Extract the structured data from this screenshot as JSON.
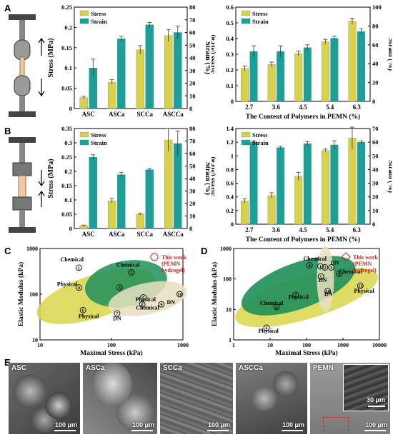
{
  "panels": {
    "A": "A",
    "B": "B",
    "C": "C",
    "D": "D",
    "E": "E"
  },
  "colors": {
    "stress": "#d8d24a",
    "strain": "#1e9e96",
    "ellipse_yellow": "#d9d64a",
    "ellipse_green": "#1f8f5a",
    "ellipse_beige": "#e8dfc0",
    "this_work": "#cc2222"
  },
  "chart_data": [
    {
      "id": "A-left",
      "type": "bar",
      "categories": [
        "ASC",
        "ASCa",
        "SCCa",
        "ASCCa"
      ],
      "series": [
        {
          "name": "Stress",
          "axis": "left",
          "values": [
            0.027,
            0.065,
            0.145,
            0.18
          ],
          "errors": [
            0.003,
            0.006,
            0.01,
            0.015
          ]
        },
        {
          "name": "Strain",
          "axis": "right",
          "values": [
            32,
            55,
            66,
            60
          ],
          "errors": [
            7,
            2,
            2,
            5
          ]
        }
      ],
      "ylabel": "Stress (MPa)",
      "ylim": [
        0,
        0.25
      ],
      "yticks": [
        0,
        0.05,
        0.1,
        0.15,
        0.2,
        0.25
      ],
      "y2label": "Strain (%)",
      "y2lim": [
        0,
        80
      ],
      "y2ticks": [
        0,
        10,
        20,
        30,
        40,
        50,
        60,
        70,
        80
      ],
      "xlabel": "",
      "legend": "top-left"
    },
    {
      "id": "A-right",
      "type": "bar",
      "categories": [
        "2.7",
        "3.6",
        "4.5",
        "5.4",
        "6.3"
      ],
      "series": [
        {
          "name": "Stress",
          "axis": "left",
          "values": [
            0.21,
            0.235,
            0.305,
            0.38,
            0.51
          ],
          "errors": [
            0.015,
            0.015,
            0.015,
            0.015,
            0.02
          ]
        },
        {
          "name": "Strain",
          "axis": "right",
          "values": [
            53,
            53,
            57,
            67,
            74
          ],
          "errors": [
            6,
            6,
            3,
            2,
            3
          ]
        }
      ],
      "ylabel": "Stress (MPa)",
      "ylim": [
        0,
        0.6
      ],
      "yticks": [
        0,
        0.1,
        0.2,
        0.3,
        0.4,
        0.5,
        0.6
      ],
      "y2label": "Strain (%)",
      "y2lim": [
        0,
        100
      ],
      "y2ticks": [
        0,
        20,
        40,
        60,
        80,
        100
      ],
      "xlabel": "The Content of Polymers in PEMN (%)",
      "legend": "top-left"
    },
    {
      "id": "B-left",
      "type": "bar",
      "categories": [
        "ASC",
        "ASCa",
        "SCCa",
        "ASCCa"
      ],
      "series": [
        {
          "name": "Stress",
          "axis": "left",
          "values": [
            0.01,
            0.097,
            0.05,
            0.31
          ],
          "errors": [
            0.002,
            0.008,
            0.003,
            0.04
          ]
        },
        {
          "name": "Strain",
          "axis": "right",
          "values": [
            57,
            43,
            47,
            68
          ],
          "errors": [
            2,
            2,
            1,
            10
          ]
        }
      ],
      "ylabel": "Stress (MPa)",
      "ylim": [
        0,
        0.35
      ],
      "yticks": [
        0,
        0.05,
        0.1,
        0.15,
        0.2,
        0.25,
        0.3,
        0.35
      ],
      "y2label": "Strain (%)",
      "y2lim": [
        0,
        80
      ],
      "y2ticks": [
        0,
        10,
        20,
        30,
        40,
        50,
        60,
        70,
        80
      ],
      "xlabel": "",
      "legend": "top-left"
    },
    {
      "id": "B-right",
      "type": "bar",
      "categories": [
        "2.7",
        "3.6",
        "4.5",
        "5.4",
        "6.3"
      ],
      "series": [
        {
          "name": "Stress",
          "axis": "left",
          "values": [
            0.34,
            0.42,
            0.7,
            1.08,
            1.26
          ],
          "errors": [
            0.03,
            0.04,
            0.06,
            0.02,
            0.16
          ]
        },
        {
          "name": "Strain",
          "axis": "right",
          "values": [
            60,
            56,
            59,
            58,
            60
          ],
          "errors": [
            1,
            1,
            1.5,
            3,
            1
          ]
        }
      ],
      "ylabel": "Stress (MPa)",
      "ylim": [
        0,
        1.4
      ],
      "yticks": [
        0,
        0.2,
        0.4,
        0.6,
        0.8,
        1.0,
        1.2,
        1.4
      ],
      "y2label": "Strain (%)",
      "y2lim": [
        0,
        70
      ],
      "y2ticks": [
        0,
        10,
        20,
        30,
        40,
        50,
        60,
        70
      ],
      "xlabel": "The Content of  Polymers in PEMN (%)",
      "legend": "top-left"
    },
    {
      "id": "C",
      "type": "scatter",
      "xlabel": "Maximal Stress (kPa)",
      "ylabel": "Elastic Modulus (kPa)",
      "xscale": "log",
      "yscale": "log",
      "xlim": [
        10,
        1000
      ],
      "ylim": [
        10,
        1000
      ],
      "xticks": [
        "10",
        "100",
        "1000"
      ],
      "yticks": [
        "10",
        "100",
        "1000"
      ],
      "points": [
        {
          "id": "1",
          "x": 35,
          "y": 380,
          "label": "Chemical"
        },
        {
          "id": "2",
          "x": 190,
          "y": 300,
          "label": "Chemical"
        },
        {
          "id": "3",
          "x": 130,
          "y": 140,
          "label": ""
        },
        {
          "id": "4",
          "x": 35,
          "y": 140,
          "label": "Physical"
        },
        {
          "id": "5",
          "x": 280,
          "y": 85,
          "label": "Physical"
        },
        {
          "id": "6",
          "x": 40,
          "y": 45,
          "label": "Physical"
        },
        {
          "id": "7",
          "x": 120,
          "y": 38,
          "label": "DN"
        },
        {
          "id": "8",
          "x": 270,
          "y": 60,
          "label": "Chemical"
        },
        {
          "id": "9",
          "x": 500,
          "y": 60,
          "label": "DN"
        },
        {
          "id": "10",
          "x": 900,
          "y": 100,
          "label": "DN"
        }
      ],
      "legend": "This work\n(PEMN\nhydrogel)"
    },
    {
      "id": "D",
      "type": "scatter",
      "xlabel": "Maximal Stress (kPa)",
      "ylabel": "Elastic Modulus (kPa)",
      "xscale": "log",
      "yscale": "log",
      "xlim": [
        1,
        10000
      ],
      "ylim": [
        1,
        1000
      ],
      "xticks": [
        "1",
        "10",
        "100",
        "1000",
        "10000"
      ],
      "yticks": [
        "1",
        "10",
        "100",
        "1000"
      ],
      "points": [
        {
          "id": "1",
          "x": 240,
          "y": 260,
          "label": "Chemical"
        },
        {
          "id": "2",
          "x": 320,
          "y": 240,
          "label": ""
        },
        {
          "id": "3",
          "x": 480,
          "y": 240,
          "label": "DN"
        },
        {
          "id": "4",
          "x": 120,
          "y": 280,
          "label": ""
        },
        {
          "id": "5",
          "x": 250,
          "y": 120,
          "label": "DN"
        },
        {
          "id": "6",
          "x": 8,
          "y": 2.5,
          "label": "Physical"
        },
        {
          "id": "7",
          "x": 50,
          "y": 30,
          "label": "Physical"
        },
        {
          "id": "8",
          "x": 15,
          "y": 12,
          "label": "Chemical"
        },
        {
          "id": "9",
          "x": 800,
          "y": 150,
          "label": "Chemical"
        },
        {
          "id": "10",
          "x": 380,
          "y": 40,
          "label": "DN"
        },
        {
          "id": "11",
          "x": 3000,
          "y": 60,
          "label": "Physical"
        }
      ],
      "legend": "This work\n(PEMN\nhydrogel)"
    }
  ],
  "text": {
    "c_labels": {
      "chem1": "Chemical",
      "chem2": "Chemical",
      "phys1": "Physical",
      "phys2": "Physical",
      "phys3": "Physical",
      "dn1": "DN",
      "dn2": "DN",
      "chem3": "Chemical"
    },
    "d_labels": {
      "chem1": "Chemical",
      "chem2": "Chemical",
      "chem3": "Chemical",
      "phys1": "Physical",
      "phys2": "Physical",
      "phys3": "Physical",
      "dn1": "DN",
      "dn2": "DN",
      "dn3": "DN"
    },
    "this_work_c": [
      "This work",
      "(PEMN",
      "hydrogel)"
    ],
    "this_work_d": [
      "This work",
      "(PEMN",
      "hydrogel)"
    ]
  },
  "sem": [
    {
      "label": "ASC",
      "scale": "100 μm"
    },
    {
      "label": "ASCa",
      "scale": "100 μm"
    },
    {
      "label": "SCCa",
      "scale": "100 μm"
    },
    {
      "label": "ASCCa",
      "scale": "100 μm"
    },
    {
      "label": "PEMN",
      "scale": "100 μm",
      "inset_scale": "30 μm"
    }
  ]
}
